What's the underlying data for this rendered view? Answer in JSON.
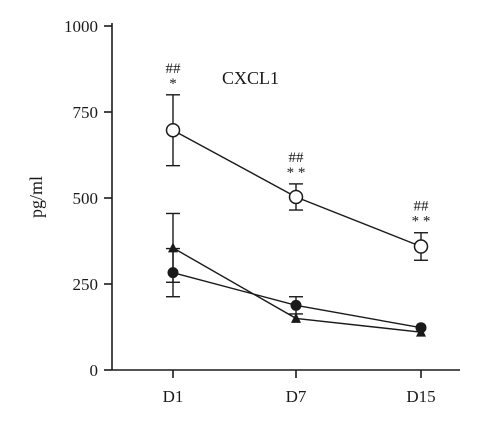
{
  "chart_data": {
    "type": "line",
    "title": "CXCL1",
    "xlabel": "",
    "ylabel": "pg/ml",
    "categories": [
      "D1",
      "D7",
      "D15"
    ],
    "ylim": [
      0,
      1000
    ],
    "yticks": [
      "0",
      "250",
      "500",
      "750",
      "1000"
    ],
    "grid": false,
    "series": [
      {
        "marker": "open-circle",
        "values": [
          697,
          503,
          359
        ],
        "error": [
          103,
          38,
          40
        ],
        "annotations": [
          [
            "##",
            "*"
          ],
          [
            "##",
            "* *"
          ],
          [
            "##",
            "* *"
          ]
        ]
      },
      {
        "marker": "triangle",
        "values": [
          355,
          150,
          110
        ],
        "error": [
          100,
          0,
          0
        ]
      },
      {
        "marker": "filled-circle",
        "values": [
          283,
          188,
          123
        ],
        "error": [
          70,
          25,
          0
        ]
      }
    ]
  }
}
